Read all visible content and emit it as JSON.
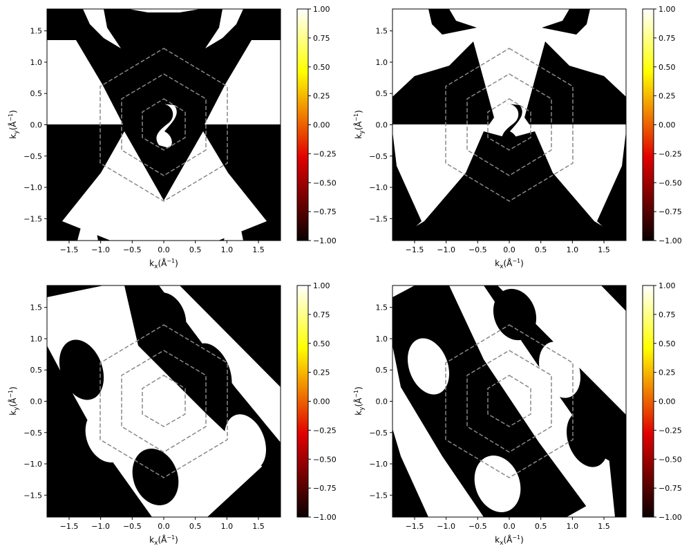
{
  "chart_data": [
    {
      "type": "heatmap",
      "panel": "top-left",
      "title": "",
      "xlabel_main": "k",
      "xlabel_sub": "x",
      "xlabel_unit": "(Å",
      "ylabel_main": "k",
      "ylabel_sub": "y",
      "ylabel_unit": "(Å",
      "unit_exponent": "−1",
      "xlim": [
        -1.85,
        1.85
      ],
      "ylim": [
        -1.85,
        1.85
      ],
      "xticks": [
        "−1.5",
        "−1.0",
        "−0.5",
        "0.0",
        "0.5",
        "1.0",
        "1.5"
      ],
      "yticks": [
        "−1.5",
        "−1.0",
        "−0.5",
        "0.0",
        "0.5",
        "1.0",
        "1.5"
      ],
      "xtick_values": [
        -1.5,
        -1.0,
        -0.5,
        0.0,
        0.5,
        1.0,
        1.5
      ],
      "ytick_values": [
        -1.5,
        -1.0,
        -0.5,
        0.0,
        0.5,
        1.0,
        1.5
      ],
      "value_range": [
        -1,
        1
      ],
      "colormap": "hot",
      "colorbar_ticks": [
        "1.00",
        "0.75",
        "0.50",
        "0.25",
        "0.00",
        "−0.25",
        "−0.50",
        "−0.75",
        "−1.00"
      ],
      "colorbar_tick_values": [
        1.0,
        0.75,
        0.5,
        0.25,
        0.0,
        -0.25,
        -0.5,
        -0.75,
        -1.0
      ],
      "hexagon_radii": [
        1.22,
        0.81,
        0.41
      ],
      "hexagon_color": "#888888"
    },
    {
      "type": "heatmap",
      "panel": "top-right",
      "title": "",
      "xlabel_main": "k",
      "xlabel_sub": "x",
      "xlabel_unit": "(Å",
      "ylabel_main": "k",
      "ylabel_sub": "y",
      "ylabel_unit": "(Å",
      "unit_exponent": "−1",
      "xlim": [
        -1.85,
        1.85
      ],
      "ylim": [
        -1.85,
        1.85
      ],
      "xticks": [
        "−1.5",
        "−1.0",
        "−0.5",
        "0.0",
        "0.5",
        "1.0",
        "1.5"
      ],
      "yticks": [
        "−1.5",
        "−1.0",
        "−0.5",
        "0.0",
        "0.5",
        "1.0",
        "1.5"
      ],
      "xtick_values": [
        -1.5,
        -1.0,
        -0.5,
        0.0,
        0.5,
        1.0,
        1.5
      ],
      "ytick_values": [
        -1.5,
        -1.0,
        -0.5,
        0.0,
        0.5,
        1.0,
        1.5
      ],
      "value_range": [
        -1,
        1
      ],
      "colormap": "hot",
      "colorbar_ticks": [
        "1.00",
        "0.75",
        "0.50",
        "0.25",
        "0.00",
        "−0.25",
        "−0.50",
        "−0.75",
        "−1.00"
      ],
      "colorbar_tick_values": [
        1.0,
        0.75,
        0.5,
        0.25,
        0.0,
        -0.25,
        -0.5,
        -0.75,
        -1.0
      ],
      "hexagon_radii": [
        1.22,
        0.81,
        0.41
      ],
      "hexagon_color": "#888888"
    },
    {
      "type": "heatmap",
      "panel": "bottom-left",
      "title": "",
      "xlabel_main": "k",
      "xlabel_sub": "x",
      "xlabel_unit": "(Å",
      "ylabel_main": "k",
      "ylabel_sub": "y",
      "ylabel_unit": "(Å",
      "unit_exponent": "−1",
      "xlim": [
        -1.85,
        1.85
      ],
      "ylim": [
        -1.85,
        1.85
      ],
      "xticks": [
        "−1.5",
        "−1.0",
        "−0.5",
        "0.0",
        "0.5",
        "1.0",
        "1.5"
      ],
      "yticks": [
        "−1.5",
        "−1.0",
        "−0.5",
        "0.0",
        "0.5",
        "1.0",
        "1.5"
      ],
      "xtick_values": [
        -1.5,
        -1.0,
        -0.5,
        0.0,
        0.5,
        1.0,
        1.5
      ],
      "ytick_values": [
        -1.5,
        -1.0,
        -0.5,
        0.0,
        0.5,
        1.0,
        1.5
      ],
      "value_range": [
        -1,
        1
      ],
      "colormap": "hot",
      "colorbar_ticks": [
        "1.00",
        "0.75",
        "0.50",
        "0.25",
        "0.00",
        "−0.25",
        "−0.50",
        "−0.75",
        "−1.00"
      ],
      "colorbar_tick_values": [
        1.0,
        0.75,
        0.5,
        0.25,
        0.0,
        -0.25,
        -0.5,
        -0.75,
        -1.0
      ],
      "hexagon_radii": [
        1.22,
        0.81,
        0.41
      ],
      "hexagon_color": "#888888"
    },
    {
      "type": "heatmap",
      "panel": "bottom-right",
      "title": "",
      "xlabel_main": "k",
      "xlabel_sub": "x",
      "xlabel_unit": "(Å",
      "ylabel_main": "k",
      "ylabel_sub": "y",
      "ylabel_unit": "(Å",
      "unit_exponent": "−1",
      "xlim": [
        -1.85,
        1.85
      ],
      "ylim": [
        -1.85,
        1.85
      ],
      "xticks": [
        "−1.5",
        "−1.0",
        "−0.5",
        "0.0",
        "0.5",
        "1.0",
        "1.5"
      ],
      "yticks": [
        "−1.5",
        "−1.0",
        "−0.5",
        "0.0",
        "0.5",
        "1.0",
        "1.5"
      ],
      "xtick_values": [
        -1.5,
        -1.0,
        -0.5,
        0.0,
        0.5,
        1.0,
        1.5
      ],
      "ytick_values": [
        -1.5,
        -1.0,
        -0.5,
        0.0,
        0.5,
        1.0,
        1.5
      ],
      "value_range": [
        -1,
        1
      ],
      "colormap": "hot",
      "colorbar_ticks": [
        "1.00",
        "0.75",
        "0.50",
        "0.25",
        "0.00",
        "−0.25",
        "−0.50",
        "−0.75",
        "−1.00"
      ],
      "colorbar_tick_values": [
        1.0,
        0.75,
        0.5,
        0.25,
        0.0,
        -0.25,
        -0.5,
        -0.75,
        -1.0
      ],
      "hexagon_radii": [
        1.22,
        0.81,
        0.41
      ],
      "hexagon_color": "#888888"
    }
  ]
}
